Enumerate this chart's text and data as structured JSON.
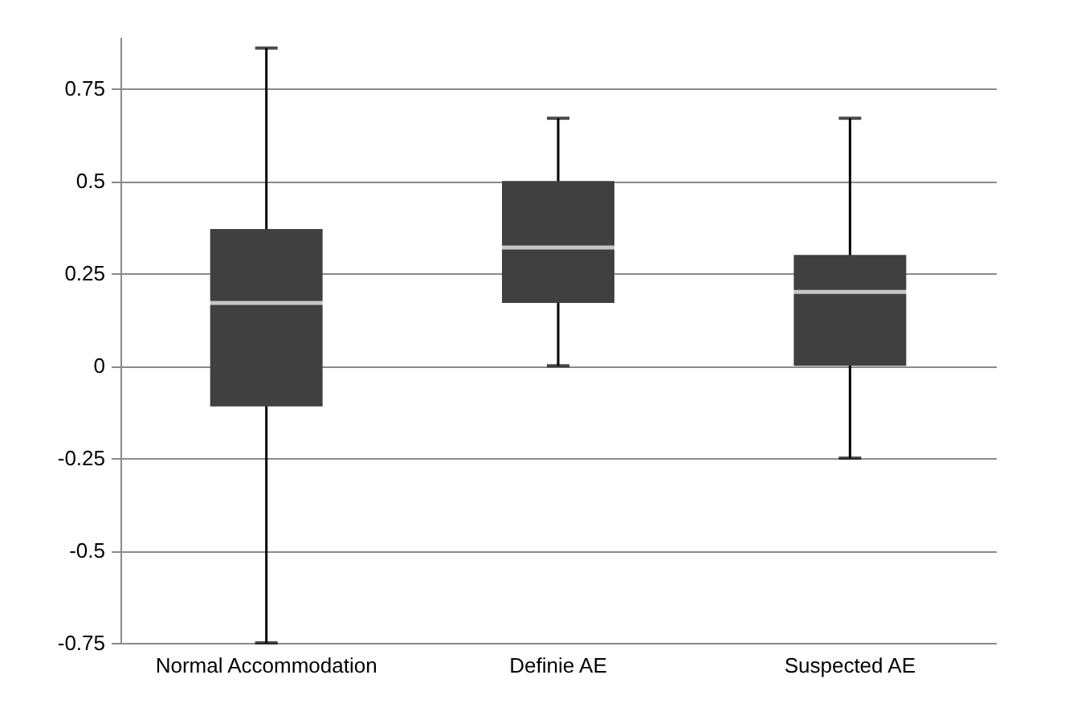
{
  "chart_data": {
    "type": "box",
    "categories": [
      "Normal Accommodation",
      "Definie AE",
      "Suspected AE"
    ],
    "series": [
      {
        "color": "#404040",
        "boxes": [
          {
            "low": -0.75,
            "q1": -0.11,
            "median": 0.17,
            "q3": 0.37,
            "high": 0.86
          },
          {
            "low": 0,
            "q1": 0.17,
            "median": 0.32,
            "q3": 0.5,
            "high": 0.67
          },
          {
            "low": -0.25,
            "q1": 0,
            "median": 0.2,
            "q3": 0.3,
            "high": 0.67
          }
        ]
      }
    ],
    "ylim": [
      -0.75,
      0.89
    ],
    "yticks": [
      -0.75,
      -0.5,
      -0.25,
      0,
      0.25,
      0.5,
      0.75
    ],
    "grid": "y"
  }
}
